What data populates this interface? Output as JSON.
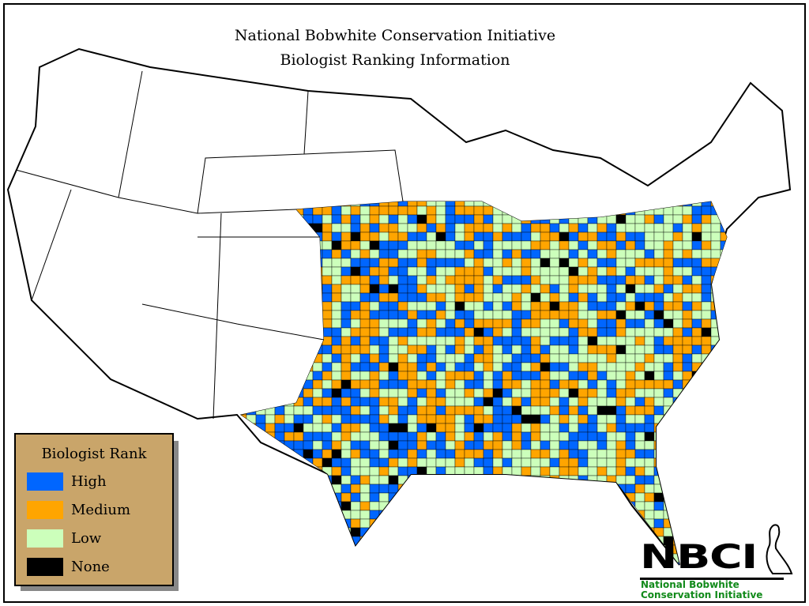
{
  "title": {
    "line1": "National Bobwhite Conservation Initiative",
    "line2": "Biologist Ranking Information"
  },
  "legend": {
    "title": "Biologist Rank",
    "items": [
      {
        "label": "High",
        "color": "#0066ff"
      },
      {
        "label": "Medium",
        "color": "#ffa500"
      },
      {
        "label": "Low",
        "color": "#ccffbb"
      },
      {
        "label": "None",
        "color": "#000000"
      }
    ]
  },
  "logo": {
    "acronym": "NBCI",
    "line1": "National Bobwhite",
    "line2": "Conservation Initiative",
    "text_color": "#118a1a"
  }
}
